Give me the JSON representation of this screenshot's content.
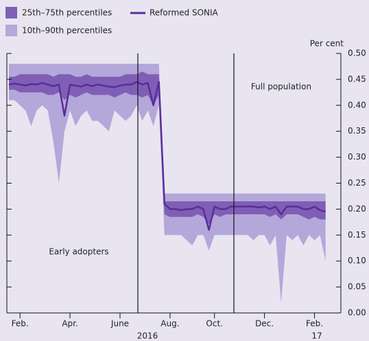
{
  "chart_data": {
    "type": "line",
    "categories": [
      null,
      null,
      "Feb.",
      null,
      null,
      null,
      null,
      null,
      null,
      null,
      null,
      "Apr.",
      null,
      null,
      null,
      null,
      null,
      null,
      null,
      null,
      "June",
      null,
      null,
      null,
      null,
      null,
      null,
      null,
      null,
      "Aug.",
      null,
      null,
      null,
      null,
      null,
      null,
      null,
      "Oct.",
      null,
      null,
      null,
      null,
      null,
      null,
      null,
      null,
      "Dec.",
      null,
      null,
      null,
      null,
      null,
      null,
      null,
      null,
      "Feb.",
      null,
      null
    ],
    "year_labels": [
      "2016",
      "17"
    ],
    "y_axis_label": "Per cent",
    "annotations": [
      "Full population",
      "Early adopters"
    ],
    "series": [
      {
        "name": "25th–75th percentiles",
        "color": "#7f5fb5",
        "low": [
          0.43,
          0.43,
          0.425,
          0.425,
          0.425,
          0.425,
          0.425,
          0.42,
          0.42,
          0.425,
          0.41,
          0.42,
          0.415,
          0.42,
          0.425,
          0.42,
          0.42,
          0.42,
          0.42,
          0.415,
          0.42,
          0.425,
          0.42,
          0.42,
          0.415,
          0.42,
          0.4,
          0.42,
          0.19,
          0.185,
          0.185,
          0.185,
          0.185,
          0.185,
          0.19,
          0.185,
          0.17,
          0.19,
          0.185,
          0.19,
          0.19,
          0.19,
          0.19,
          0.19,
          0.19,
          0.19,
          0.19,
          0.185,
          0.19,
          0.18,
          0.19,
          0.19,
          0.19,
          0.185,
          0.18,
          0.185,
          0.18,
          0.18
        ],
        "high": [
          0.455,
          0.455,
          0.46,
          0.46,
          0.46,
          0.46,
          0.46,
          0.46,
          0.455,
          0.46,
          0.46,
          0.46,
          0.455,
          0.455,
          0.46,
          0.455,
          0.455,
          0.455,
          0.455,
          0.455,
          0.455,
          0.46,
          0.46,
          0.46,
          0.465,
          0.46,
          0.46,
          0.46,
          0.215,
          0.215,
          0.215,
          0.215,
          0.215,
          0.215,
          0.215,
          0.215,
          0.215,
          0.215,
          0.215,
          0.215,
          0.215,
          0.215,
          0.215,
          0.215,
          0.215,
          0.215,
          0.215,
          0.215,
          0.215,
          0.215,
          0.215,
          0.215,
          0.215,
          0.215,
          0.215,
          0.215,
          0.215,
          0.215
        ]
      },
      {
        "name": "10th–90th percentiles",
        "color": "#b4a7da",
        "low": [
          0.41,
          0.41,
          0.4,
          0.39,
          0.36,
          0.39,
          0.4,
          0.39,
          0.33,
          0.25,
          0.35,
          0.39,
          0.36,
          0.38,
          0.39,
          0.37,
          0.37,
          0.36,
          0.35,
          0.39,
          0.38,
          0.37,
          0.38,
          0.4,
          0.37,
          0.39,
          0.36,
          0.4,
          0.15,
          0.15,
          0.15,
          0.15,
          0.14,
          0.13,
          0.15,
          0.15,
          0.12,
          0.15,
          0.15,
          0.15,
          0.15,
          0.15,
          0.15,
          0.15,
          0.14,
          0.15,
          0.15,
          0.13,
          0.15,
          0.02,
          0.15,
          0.14,
          0.15,
          0.13,
          0.15,
          0.14,
          0.15,
          0.1
        ],
        "high": [
          0.48,
          0.48,
          0.48,
          0.48,
          0.48,
          0.48,
          0.48,
          0.48,
          0.48,
          0.48,
          0.48,
          0.48,
          0.48,
          0.48,
          0.48,
          0.48,
          0.48,
          0.48,
          0.48,
          0.48,
          0.48,
          0.48,
          0.48,
          0.48,
          0.48,
          0.48,
          0.48,
          0.48,
          0.23,
          0.23,
          0.23,
          0.23,
          0.23,
          0.23,
          0.23,
          0.23,
          0.23,
          0.23,
          0.23,
          0.23,
          0.23,
          0.23,
          0.23,
          0.23,
          0.23,
          0.23,
          0.23,
          0.23,
          0.23,
          0.23,
          0.23,
          0.23,
          0.23,
          0.23,
          0.23,
          0.23,
          0.23,
          0.23
        ]
      },
      {
        "name": "Reformed SONIA",
        "color": "#5a2d9a",
        "values": [
          0.44,
          0.442,
          0.44,
          0.438,
          0.441,
          0.44,
          0.443,
          0.44,
          0.437,
          0.44,
          0.38,
          0.44,
          0.438,
          0.436,
          0.44,
          0.437,
          0.44,
          0.438,
          0.436,
          0.435,
          0.438,
          0.44,
          0.44,
          0.445,
          0.44,
          0.443,
          0.4,
          0.445,
          0.21,
          0.2,
          0.2,
          0.198,
          0.2,
          0.2,
          0.205,
          0.2,
          0.16,
          0.205,
          0.2,
          0.2,
          0.205,
          0.205,
          0.205,
          0.205,
          0.205,
          0.203,
          0.205,
          0.2,
          0.205,
          0.19,
          0.205,
          0.205,
          0.205,
          0.2,
          0.2,
          0.205,
          0.198,
          0.195
        ]
      }
    ],
    "ylim": [
      0,
      0.5
    ],
    "yticks": [
      {
        "value": 0,
        "label": "0.00"
      },
      {
        "value": 0.05,
        "label": "0.05"
      },
      {
        "value": 0.1,
        "label": "0.10"
      },
      {
        "value": 0.15,
        "label": "0.15"
      },
      {
        "value": 0.2,
        "label": "0.20"
      },
      {
        "value": 0.25,
        "label": "0.25"
      },
      {
        "value": 0.3,
        "label": "0.30"
      },
      {
        "value": 0.35,
        "label": "0.35"
      },
      {
        "value": 0.4,
        "label": "0.40"
      },
      {
        "value": 0.45,
        "label": "0.45"
      },
      {
        "value": 0.5,
        "label": "0.50"
      }
    ]
  }
}
